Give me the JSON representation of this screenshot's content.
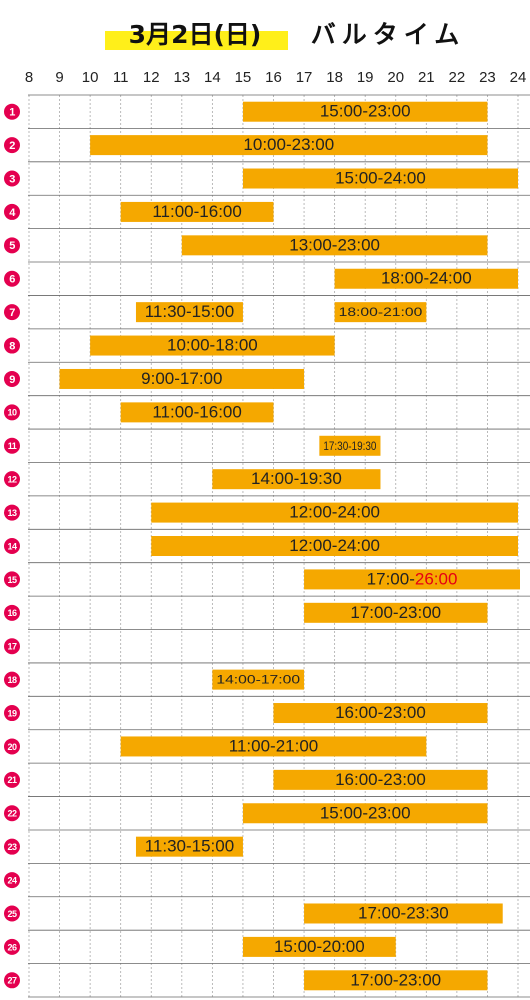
{
  "chart_data": {
    "type": "gantt",
    "title": "3月2日(日)",
    "subtitle": "バルタイム",
    "xlim": [
      8,
      24
    ],
    "xticks": [
      8,
      9,
      10,
      11,
      12,
      13,
      14,
      15,
      16,
      17,
      18,
      19,
      20,
      21,
      22,
      23,
      24
    ],
    "bar_color": "#f5a800",
    "badge_color": "#e4004f",
    "rows": [
      {
        "label": "1",
        "bars": [
          {
            "start": 15,
            "end": 23,
            "label": "15:00-23:00"
          }
        ]
      },
      {
        "label": "2",
        "bars": [
          {
            "start": 10,
            "end": 23,
            "label": "10:00-23:00"
          }
        ]
      },
      {
        "label": "3",
        "bars": [
          {
            "start": 15,
            "end": 24,
            "label": "15:00-24:00"
          }
        ]
      },
      {
        "label": "4",
        "bars": [
          {
            "start": 11,
            "end": 16,
            "label": "11:00-16:00"
          }
        ]
      },
      {
        "label": "5",
        "bars": [
          {
            "start": 13,
            "end": 23,
            "label": "13:00-23:00"
          }
        ]
      },
      {
        "label": "6",
        "bars": [
          {
            "start": 18,
            "end": 24,
            "label": "18:00-24:00"
          }
        ]
      },
      {
        "label": "7",
        "bars": [
          {
            "start": 11.5,
            "end": 15,
            "label": "11:30-15:00"
          },
          {
            "start": 18,
            "end": 21,
            "label": "18:00-21:00",
            "small": true
          }
        ]
      },
      {
        "label": "8",
        "bars": [
          {
            "start": 10,
            "end": 18,
            "label": "10:00-18:00"
          }
        ]
      },
      {
        "label": "9",
        "bars": [
          {
            "start": 9,
            "end": 17,
            "label": "9:00-17:00"
          }
        ]
      },
      {
        "label": "10",
        "bars": [
          {
            "start": 11,
            "end": 16,
            "label": "11:00-16:00"
          }
        ]
      },
      {
        "label": "11",
        "bars": [
          {
            "start": 17.5,
            "end": 19.5,
            "label": "17:30-19:30",
            "small": true
          }
        ]
      },
      {
        "label": "12",
        "bars": [
          {
            "start": 14,
            "end": 19.5,
            "label": "14:00-19:30"
          }
        ]
      },
      {
        "label": "13",
        "bars": [
          {
            "start": 12,
            "end": 24,
            "label": "12:00-24:00"
          }
        ]
      },
      {
        "label": "14",
        "bars": [
          {
            "start": 12,
            "end": 24,
            "label": "12:00-24:00"
          }
        ]
      },
      {
        "label": "15",
        "bars": [
          {
            "start": 17,
            "end": 26,
            "label": "17:00-",
            "label_end": "26:00",
            "label_end_color": "#e60012"
          }
        ]
      },
      {
        "label": "16",
        "bars": [
          {
            "start": 17,
            "end": 23,
            "label": "17:00-23:00"
          }
        ]
      },
      {
        "label": "17",
        "bars": []
      },
      {
        "label": "18",
        "bars": [
          {
            "start": 14,
            "end": 17,
            "label": "14:00-17:00",
            "small": true
          }
        ]
      },
      {
        "label": "19",
        "bars": [
          {
            "start": 16,
            "end": 23,
            "label": "16:00-23:00"
          }
        ]
      },
      {
        "label": "20",
        "bars": [
          {
            "start": 11,
            "end": 21,
            "label": "11:00-21:00"
          }
        ]
      },
      {
        "label": "21",
        "bars": [
          {
            "start": 16,
            "end": 23,
            "label": "16:00-23:00"
          }
        ]
      },
      {
        "label": "22",
        "bars": [
          {
            "start": 15,
            "end": 23,
            "label": "15:00-23:00"
          }
        ]
      },
      {
        "label": "23",
        "bars": [
          {
            "start": 11.5,
            "end": 15,
            "label": "11:30-15:00"
          }
        ]
      },
      {
        "label": "24",
        "bars": []
      },
      {
        "label": "25",
        "bars": [
          {
            "start": 17,
            "end": 23.5,
            "label": "17:00-23:30"
          }
        ]
      },
      {
        "label": "26",
        "bars": [
          {
            "start": 15,
            "end": 20,
            "label": "15:00-20:00"
          }
        ]
      },
      {
        "label": "27",
        "bars": [
          {
            "start": 17,
            "end": 23,
            "label": "17:00-23:00"
          }
        ]
      }
    ]
  }
}
